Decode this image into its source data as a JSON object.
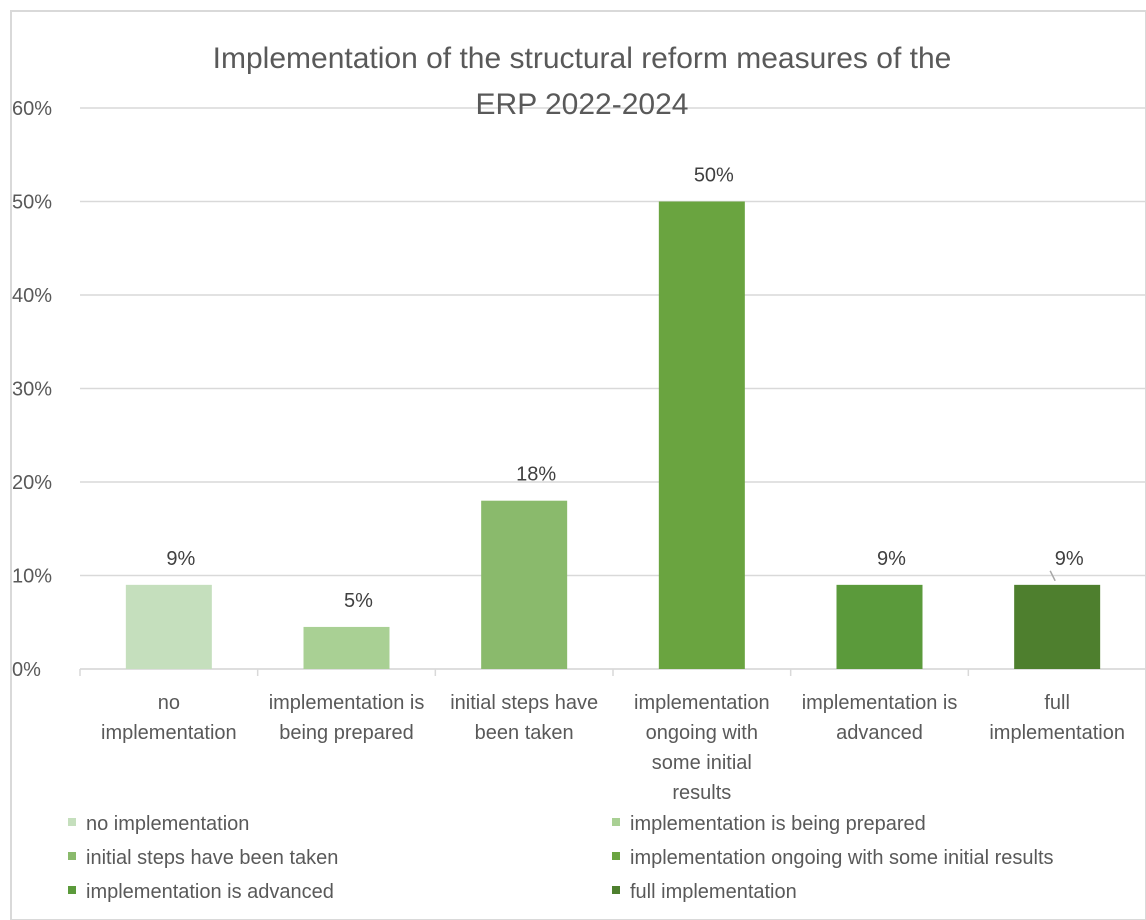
{
  "chart_data": {
    "type": "bar",
    "title": "Implementation of the structural reform measures of the ERP 2022-2024",
    "title_lines": [
      "Implementation of the structural reform measures of the",
      "ERP 2022-2024"
    ],
    "xlabel": "",
    "ylabel": "",
    "ylim": [
      0,
      60
    ],
    "yticks": [
      0,
      10,
      20,
      30,
      40,
      50,
      60
    ],
    "ytick_labels": [
      "0%",
      "10%",
      "20%",
      "30%",
      "40%",
      "50%",
      "60%"
    ],
    "grid": true,
    "legend_position": "bottom",
    "categories": [
      "no implementation",
      "implementation is being prepared",
      "initial steps have been taken",
      "implementation ongoing with some initial results",
      "implementation is advanced",
      "full implementation"
    ],
    "category_label_lines": [
      [
        "no",
        "implementation"
      ],
      [
        "implementation is",
        "being prepared"
      ],
      [
        "initial steps have",
        "been taken"
      ],
      [
        "implementation",
        "ongoing with",
        "some initial",
        "results"
      ],
      [
        "implementation is",
        "advanced"
      ],
      [
        "full",
        "implementation"
      ]
    ],
    "values": [
      9,
      4.5,
      18,
      50,
      9,
      9
    ],
    "data_labels": [
      "9%",
      "5%",
      "18%",
      "50%",
      "9%",
      "9%"
    ],
    "colors": [
      "#c5dfbd",
      "#a9d094",
      "#8aba6c",
      "#6aa440",
      "#5b9a3b",
      "#4e7f2e"
    ]
  }
}
